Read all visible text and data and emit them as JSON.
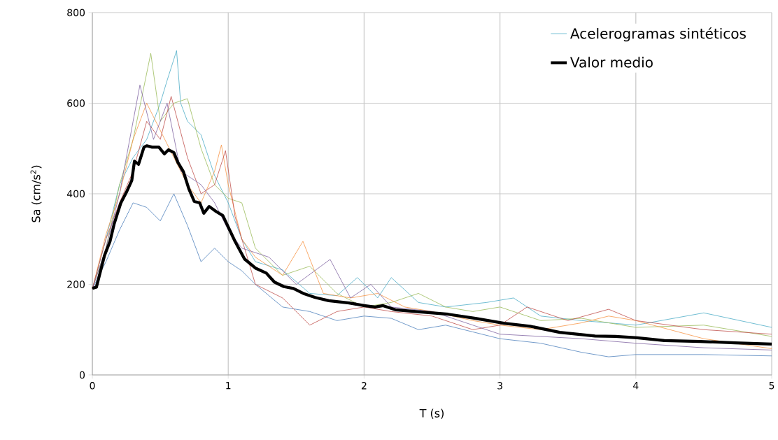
{
  "chart_data": {
    "type": "line",
    "xlabel": "T (s)",
    "ylabel": "Sa  (cm/s$^{2}$)",
    "xlim": [
      0,
      5
    ],
    "ylim": [
      0,
      800
    ],
    "xticks": [
      0,
      1,
      2,
      3,
      4,
      5
    ],
    "yticks": [
      0,
      200,
      400,
      600,
      800
    ],
    "grid": true,
    "legend": "top right",
    "line_style": "solid",
    "marker": "none",
    "series": [
      {
        "name": "Acelerogramas sintéticos",
        "color": "#4bacc6",
        "x": [
          0,
          0.1,
          0.2,
          0.3,
          0.4,
          0.5,
          0.55,
          0.62,
          0.65,
          0.7,
          0.8,
          0.9,
          1.0,
          1.1,
          1.2,
          1.4,
          1.6,
          1.8,
          1.95,
          2.1,
          2.2,
          2.4,
          2.6,
          2.9,
          3.1,
          3.3,
          3.6,
          4.0,
          4.5,
          5.0
        ],
        "values": [
          190,
          300,
          420,
          480,
          520,
          600,
          650,
          716,
          600,
          560,
          530,
          440,
          380,
          300,
          250,
          232,
          180,
          175,
          215,
          170,
          215,
          160,
          150,
          160,
          170,
          130,
          120,
          110,
          137,
          105
        ]
      },
      {
        "color": "#9bbb59",
        "x": [
          0,
          0.1,
          0.2,
          0.3,
          0.43,
          0.5,
          0.6,
          0.7,
          0.8,
          0.9,
          1.0,
          1.1,
          1.2,
          1.4,
          1.6,
          1.8,
          2.0,
          2.2,
          2.4,
          2.6,
          2.8,
          3.0,
          3.3,
          3.6,
          4.0,
          4.5,
          5.0
        ],
        "values": [
          190,
          280,
          420,
          520,
          710,
          560,
          600,
          610,
          500,
          420,
          390,
          380,
          280,
          220,
          240,
          180,
          150,
          160,
          180,
          150,
          140,
          150,
          120,
          125,
          105,
          110,
          85
        ]
      },
      {
        "color": "#4f81bd",
        "x": [
          0,
          0.1,
          0.2,
          0.3,
          0.4,
          0.5,
          0.6,
          0.7,
          0.8,
          0.9,
          1.0,
          1.1,
          1.2,
          1.4,
          1.6,
          1.8,
          2.0,
          2.2,
          2.4,
          2.6,
          2.8,
          3.0,
          3.3,
          3.6,
          3.8,
          4.0,
          4.5,
          5.0
        ],
        "values": [
          190,
          250,
          320,
          380,
          370,
          340,
          400,
          330,
          250,
          280,
          250,
          230,
          200,
          150,
          140,
          120,
          130,
          125,
          100,
          110,
          95,
          80,
          70,
          50,
          40,
          45,
          45,
          42
        ]
      },
      {
        "color": "#f79646",
        "x": [
          0,
          0.1,
          0.2,
          0.3,
          0.4,
          0.5,
          0.6,
          0.7,
          0.8,
          0.9,
          0.95,
          1.0,
          1.1,
          1.2,
          1.4,
          1.55,
          1.7,
          1.9,
          2.1,
          2.3,
          2.5,
          2.8,
          3.0,
          3.3,
          3.6,
          3.8,
          4.0,
          4.5,
          5.0
        ],
        "values": [
          190,
          310,
          400,
          520,
          600,
          540,
          480,
          420,
          380,
          450,
          508,
          420,
          300,
          260,
          220,
          295,
          180,
          170,
          180,
          150,
          140,
          120,
          110,
          100,
          115,
          130,
          120,
          80,
          58
        ]
      },
      {
        "color": "#c0504d",
        "x": [
          0,
          0.1,
          0.2,
          0.3,
          0.4,
          0.5,
          0.58,
          0.7,
          0.8,
          0.9,
          0.98,
          1.05,
          1.2,
          1.4,
          1.6,
          1.8,
          2.0,
          2.2,
          2.5,
          2.8,
          3.0,
          3.2,
          3.5,
          3.8,
          4.0,
          4.5,
          5.0
        ],
        "values": [
          190,
          300,
          380,
          450,
          560,
          520,
          615,
          480,
          400,
          420,
          495,
          350,
          200,
          170,
          110,
          140,
          150,
          140,
          130,
          100,
          110,
          150,
          120,
          145,
          120,
          100,
          90
        ]
      },
      {
        "color": "#8064a2",
        "x": [
          0,
          0.1,
          0.2,
          0.3,
          0.35,
          0.45,
          0.55,
          0.65,
          0.8,
          0.9,
          1.0,
          1.1,
          1.3,
          1.5,
          1.75,
          1.9,
          2.05,
          2.2,
          2.5,
          2.8,
          3.0,
          3.3,
          3.6,
          4.0,
          4.5,
          5.0
        ],
        "values": [
          190,
          280,
          400,
          560,
          640,
          520,
          600,
          450,
          420,
          380,
          320,
          280,
          260,
          200,
          255,
          170,
          200,
          150,
          140,
          110,
          90,
          85,
          80,
          70,
          60,
          55
        ]
      },
      {
        "name": "Valor medio",
        "color": "#000000",
        "x": [
          0,
          0.03,
          0.07,
          0.09,
          0.13,
          0.16,
          0.21,
          0.25,
          0.29,
          0.31,
          0.34,
          0.38,
          0.4,
          0.44,
          0.49,
          0.53,
          0.56,
          0.6,
          0.63,
          0.67,
          0.71,
          0.75,
          0.79,
          0.82,
          0.86,
          0.91,
          0.96,
          0.99,
          1.05,
          1.12,
          1.2,
          1.28,
          1.34,
          1.41,
          1.48,
          1.56,
          1.64,
          1.74,
          1.89,
          2.0,
          2.08,
          2.14,
          2.23,
          2.41,
          2.62,
          2.82,
          3.03,
          3.23,
          3.44,
          3.7,
          3.85,
          4.01,
          4.21,
          4.47,
          4.73,
          5.0
        ],
        "values": [
          191,
          194,
          241,
          264,
          295,
          333,
          380,
          403,
          429,
          472,
          465,
          503,
          506,
          503,
          503,
          488,
          497,
          491,
          469,
          449,
          411,
          383,
          380,
          357,
          372,
          361,
          352,
          333,
          295,
          256,
          236,
          225,
          205,
          195,
          191,
          179,
          171,
          164,
          159,
          153,
          150,
          153,
          144,
          139,
          134,
          125,
          114,
          107,
          94,
          86,
          85,
          82,
          76,
          74,
          71,
          68
        ]
      }
    ]
  }
}
